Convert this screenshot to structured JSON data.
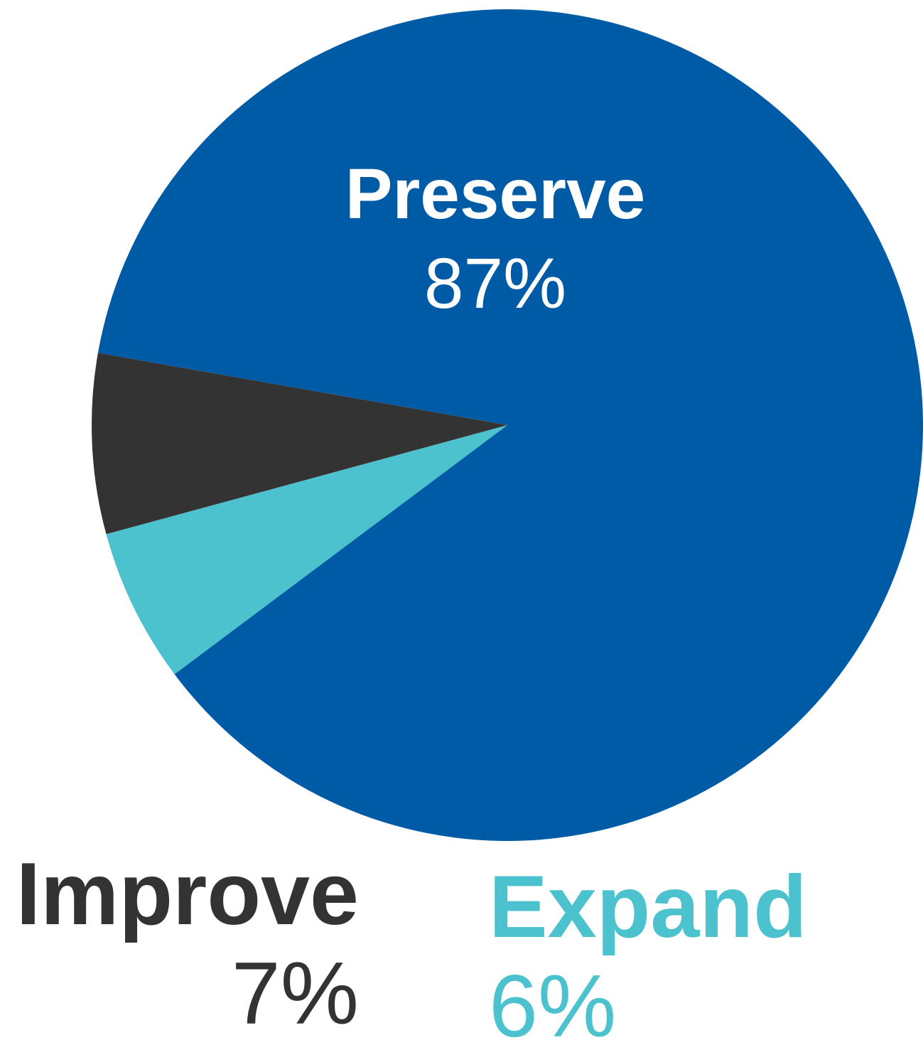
{
  "chart_data": {
    "type": "pie",
    "slices": [
      {
        "label": "Preserve",
        "value": 87,
        "display_value": "87%",
        "color": "#005BA6"
      },
      {
        "label": "Expand",
        "value": 6,
        "display_value": "6%",
        "color": "#4DC2CF"
      },
      {
        "label": "Improve",
        "value": 7,
        "display_value": "7%",
        "color": "#333333"
      }
    ],
    "start_angle_deg": 190,
    "direction": "clockwise",
    "legend": "none"
  }
}
